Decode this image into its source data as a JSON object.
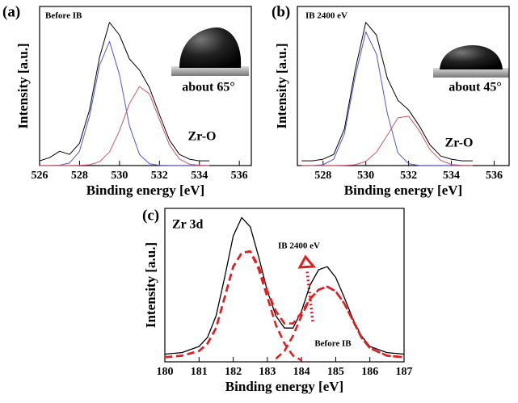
{
  "chart_data": [
    {
      "type": "line",
      "panel_label": "(a)",
      "xlabel": "Binding energy [eV]",
      "ylabel": "Intensity [a.u.]",
      "annotations": [
        "Before IB",
        "about 65°",
        "Zr-O"
      ],
      "xlim": [
        526,
        536.6
      ],
      "xticks": [
        526,
        528,
        530,
        532,
        534,
        536
      ],
      "ylim": [
        0,
        1
      ],
      "x": [
        526,
        526.5,
        527,
        527.5,
        528,
        528.5,
        529,
        529.5,
        530,
        530.5,
        531,
        531.5,
        532,
        532.5,
        533,
        533.5,
        534,
        534.5
      ],
      "series": [
        {
          "color": "#000000",
          "values": [
            0.03,
            0.05,
            0.09,
            0.07,
            0.14,
            0.35,
            0.68,
            0.9,
            0.82,
            0.67,
            0.6,
            0.49,
            0.32,
            0.16,
            0.07,
            0.04,
            0.03,
            0.03
          ]
        },
        {
          "color": "#5555cc",
          "values": [
            0,
            0,
            0.002,
            0.016,
            0.09,
            0.31,
            0.63,
            0.78,
            0.57,
            0.25,
            0.07,
            0.011,
            0.001,
            0,
            0,
            0,
            0,
            0
          ]
        },
        {
          "color": "#cc5566",
          "values": [
            0,
            0,
            0,
            0,
            0.001,
            0.005,
            0.024,
            0.085,
            0.22,
            0.39,
            0.497,
            0.45,
            0.29,
            0.13,
            0.041,
            0.009,
            0.002,
            0
          ]
        }
      ]
    },
    {
      "type": "line",
      "panel_label": "(b)",
      "xlabel": "Binding energy [eV]",
      "ylabel": "Intensity [a.u.]",
      "annotations": [
        "IB 2400 eV",
        "about 45°",
        "Zr-O"
      ],
      "xlim": [
        526.8,
        536.7
      ],
      "xticks": [
        528,
        530,
        532,
        534,
        536
      ],
      "ylim": [
        0,
        1
      ],
      "x": [
        527,
        527.5,
        528,
        528.5,
        529,
        529.5,
        530,
        530.5,
        531,
        531.5,
        532,
        532.5,
        533,
        533.5,
        534,
        534.5,
        535
      ],
      "series": [
        {
          "color": "#000000",
          "values": [
            0.03,
            0.03,
            0.04,
            0.07,
            0.23,
            0.6,
            0.9,
            0.82,
            0.55,
            0.41,
            0.35,
            0.25,
            0.13,
            0.06,
            0.04,
            0.03,
            0.03
          ]
        },
        {
          "color": "#5555cc",
          "values": [
            0,
            0,
            0.005,
            0.04,
            0.2,
            0.56,
            0.84,
            0.7,
            0.33,
            0.08,
            0.012,
            0,
            0,
            0,
            0,
            0,
            0
          ]
        },
        {
          "color": "#cc5566",
          "values": [
            0,
            0,
            0,
            0,
            0.001,
            0.005,
            0.026,
            0.085,
            0.19,
            0.3,
            0.31,
            0.22,
            0.1,
            0.033,
            0.007,
            0.001,
            0
          ]
        }
      ]
    },
    {
      "type": "line",
      "panel_label": "(c)",
      "xlabel": "Binding energy [eV]",
      "ylabel": "Intensity [a.u.]",
      "annotations": [
        "Zr 3d"
      ],
      "xlim": [
        180,
        187
      ],
      "xticks": [
        180,
        181,
        182,
        183,
        184,
        185,
        186,
        187
      ],
      "ylim": [
        0,
        1
      ],
      "x": [
        180,
        180.5,
        181,
        181.25,
        181.5,
        181.75,
        182,
        182.25,
        182.5,
        182.75,
        183,
        183.25,
        183.5,
        183.75,
        184,
        184.25,
        184.5,
        184.75,
        185,
        185.25,
        185.5,
        185.75,
        186,
        186.5,
        187
      ],
      "series": [
        {
          "name": "IB 2400 eV",
          "color": "#000000",
          "values": [
            0.05,
            0.06,
            0.1,
            0.16,
            0.3,
            0.55,
            0.82,
            0.94,
            0.88,
            0.68,
            0.46,
            0.3,
            0.22,
            0.22,
            0.33,
            0.5,
            0.6,
            0.62,
            0.55,
            0.42,
            0.28,
            0.17,
            0.1,
            0.06,
            0.05
          ]
        },
        {
          "name": "Before IB",
          "color": "#e02020",
          "values": [
            0.03,
            0.04,
            0.07,
            0.12,
            0.22,
            0.42,
            0.62,
            0.71,
            0.72,
            0.62,
            0.46,
            0.33,
            0.25,
            0.25,
            0.32,
            0.41,
            0.47,
            0.49,
            0.46,
            0.38,
            0.27,
            0.16,
            0.09,
            0.04,
            0.03
          ]
        },
        {
          "color": "#e02020",
          "values": [
            0.03,
            0.04,
            0.07,
            0.12,
            0.22,
            0.42,
            0.62,
            0.71,
            0.72,
            0.6,
            0.42,
            0.24,
            0.12,
            0.04,
            0.01,
            null,
            null,
            null,
            null,
            null,
            null,
            null,
            null,
            null,
            null
          ]
        },
        {
          "color": "#e02020",
          "values": [
            null,
            null,
            null,
            null,
            null,
            null,
            null,
            null,
            null,
            null,
            null,
            0.02,
            0.07,
            0.17,
            0.3,
            0.41,
            0.47,
            0.49,
            0.46,
            0.38,
            0.27,
            0.16,
            0.09,
            0.04,
            0.03
          ]
        }
      ]
    }
  ]
}
